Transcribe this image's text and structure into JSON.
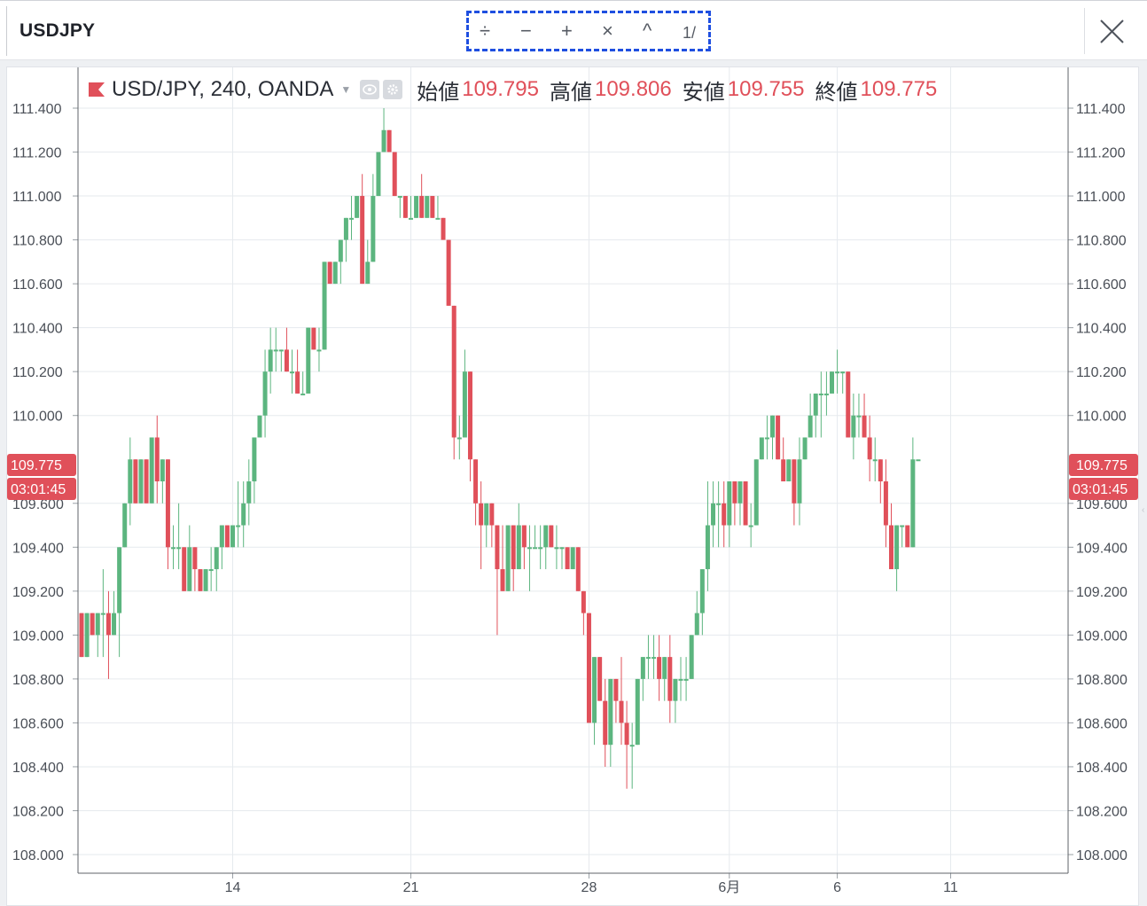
{
  "window": {
    "symbol": "USDJPY",
    "toolbar": {
      "divide": "÷",
      "minus": "−",
      "plus": "+",
      "times": "×",
      "caret": "^",
      "page": "1/"
    }
  },
  "legend": {
    "instrument": "USD/JPY, 240, OANDA",
    "open_label": "始値",
    "open_value": "109.795",
    "high_label": "高値",
    "high_value": "109.806",
    "low_label": "安値",
    "low_value": "109.755",
    "close_label": "終値",
    "close_value": "109.775"
  },
  "price_badge": {
    "price": "109.775",
    "countdown": "03:01:45"
  },
  "colors": {
    "up": "#5cb57f",
    "down": "#e0505a",
    "grid": "#e6eaee",
    "axis_text": "#4a4f57"
  },
  "chart_data": {
    "type": "candlestick",
    "title": "USD/JPY, 240, OANDA",
    "ylim": [
      108.0,
      111.4
    ],
    "y_ticks": [
      "111.400",
      "111.200",
      "111.000",
      "110.800",
      "110.600",
      "110.400",
      "110.200",
      "110.000",
      "109.600",
      "109.400",
      "109.200",
      "109.000",
      "108.800",
      "108.600",
      "108.400",
      "108.200",
      "108.000"
    ],
    "x_ticks": [
      {
        "label": "14",
        "index": 28
      },
      {
        "label": "21",
        "index": 61
      },
      {
        "label": "28",
        "index": 94
      },
      {
        "label": "6月",
        "index": 120
      },
      {
        "label": "6",
        "index": 140
      },
      {
        "label": "11",
        "index": 161
      }
    ],
    "grid": true,
    "ohlc": [
      [
        109.1,
        109.1,
        108.9,
        108.9
      ],
      [
        108.9,
        109.1,
        108.9,
        109.1
      ],
      [
        109.1,
        109.1,
        109.0,
        109.0
      ],
      [
        109.0,
        109.1,
        108.9,
        109.1
      ],
      [
        109.1,
        109.3,
        108.9,
        109.1
      ],
      [
        109.1,
        109.2,
        108.8,
        109.0
      ],
      [
        109.0,
        109.2,
        109.0,
        109.1
      ],
      [
        109.1,
        109.4,
        108.9,
        109.4
      ],
      [
        109.4,
        109.6,
        109.4,
        109.6
      ],
      [
        109.6,
        109.9,
        109.5,
        109.8
      ],
      [
        109.8,
        109.8,
        109.6,
        109.6
      ],
      [
        109.6,
        109.8,
        109.6,
        109.8
      ],
      [
        109.8,
        109.8,
        109.6,
        109.6
      ],
      [
        109.6,
        109.9,
        109.6,
        109.9
      ],
      [
        109.9,
        110.0,
        109.6,
        109.7
      ],
      [
        109.7,
        109.8,
        109.6,
        109.8
      ],
      [
        109.8,
        109.8,
        109.3,
        109.4
      ],
      [
        109.4,
        109.5,
        109.3,
        109.4
      ],
      [
        109.4,
        109.6,
        109.3,
        109.4
      ],
      [
        109.4,
        109.4,
        109.2,
        109.2
      ],
      [
        109.2,
        109.5,
        109.2,
        109.4
      ],
      [
        109.4,
        109.4,
        109.2,
        109.3
      ],
      [
        109.3,
        109.3,
        109.2,
        109.2
      ],
      [
        109.2,
        109.3,
        109.2,
        109.3
      ],
      [
        109.3,
        109.4,
        109.2,
        109.3
      ],
      [
        109.3,
        109.4,
        109.2,
        109.4
      ],
      [
        109.4,
        109.5,
        109.3,
        109.5
      ],
      [
        109.5,
        109.5,
        109.4,
        109.4
      ],
      [
        109.4,
        109.5,
        109.4,
        109.5
      ],
      [
        109.5,
        109.7,
        109.4,
        109.5
      ],
      [
        109.5,
        109.7,
        109.4,
        109.6
      ],
      [
        109.6,
        109.8,
        109.5,
        109.7
      ],
      [
        109.7,
        109.9,
        109.6,
        109.9
      ],
      [
        109.9,
        110.0,
        109.9,
        110.0
      ],
      [
        110.0,
        110.3,
        109.9,
        110.2
      ],
      [
        110.2,
        110.4,
        110.1,
        110.3
      ],
      [
        110.3,
        110.4,
        110.2,
        110.3
      ],
      [
        110.3,
        110.3,
        110.2,
        110.3
      ],
      [
        110.3,
        110.4,
        110.2,
        110.2
      ],
      [
        110.2,
        110.3,
        110.1,
        110.2
      ],
      [
        110.2,
        110.3,
        110.1,
        110.1
      ],
      [
        110.1,
        110.2,
        110.1,
        110.1
      ],
      [
        110.1,
        110.4,
        110.1,
        110.4
      ],
      [
        110.4,
        110.4,
        110.3,
        110.3
      ],
      [
        110.3,
        110.4,
        110.2,
        110.3
      ],
      [
        110.3,
        110.7,
        110.3,
        110.7
      ],
      [
        110.7,
        110.7,
        110.6,
        110.6
      ],
      [
        110.6,
        110.7,
        110.6,
        110.7
      ],
      [
        110.7,
        110.8,
        110.6,
        110.8
      ],
      [
        110.8,
        110.9,
        110.7,
        110.9
      ],
      [
        110.9,
        111.0,
        110.8,
        110.9
      ],
      [
        110.9,
        111.0,
        110.9,
        111.0
      ],
      [
        111.0,
        111.1,
        110.6,
        110.6
      ],
      [
        110.6,
        110.8,
        110.6,
        110.7
      ],
      [
        110.7,
        111.1,
        110.7,
        111.0
      ],
      [
        111.0,
        111.2,
        111.0,
        111.2
      ],
      [
        111.2,
        111.4,
        111.2,
        111.3
      ],
      [
        111.3,
        111.3,
        111.2,
        111.2
      ],
      [
        111.2,
        111.2,
        111.0,
        111.0
      ],
      [
        111.0,
        111.0,
        110.9,
        111.0
      ],
      [
        111.0,
        111.0,
        110.9,
        110.9
      ],
      [
        110.9,
        111.0,
        110.9,
        110.9
      ],
      [
        110.9,
        111.0,
        110.9,
        111.0
      ],
      [
        111.0,
        111.1,
        110.9,
        110.9
      ],
      [
        110.9,
        111.0,
        110.9,
        111.0
      ],
      [
        111.0,
        111.0,
        110.9,
        110.9
      ],
      [
        110.9,
        111.0,
        110.9,
        110.9
      ],
      [
        110.9,
        110.9,
        110.8,
        110.8
      ],
      [
        110.8,
        110.8,
        110.5,
        110.5
      ],
      [
        110.5,
        110.5,
        109.8,
        109.9
      ],
      [
        109.9,
        110.0,
        109.8,
        109.9
      ],
      [
        109.9,
        110.3,
        109.9,
        110.2
      ],
      [
        110.2,
        110.2,
        109.7,
        109.8
      ],
      [
        109.8,
        109.8,
        109.5,
        109.6
      ],
      [
        109.6,
        109.7,
        109.3,
        109.5
      ],
      [
        109.5,
        109.6,
        109.4,
        109.6
      ],
      [
        109.6,
        109.6,
        109.4,
        109.5
      ],
      [
        109.5,
        109.5,
        109.0,
        109.3
      ],
      [
        109.3,
        109.5,
        109.2,
        109.2
      ],
      [
        109.2,
        109.5,
        109.2,
        109.5
      ],
      [
        109.5,
        109.5,
        109.2,
        109.3
      ],
      [
        109.3,
        109.6,
        109.3,
        109.5
      ],
      [
        109.5,
        109.5,
        109.3,
        109.4
      ],
      [
        109.4,
        109.5,
        109.2,
        109.4
      ],
      [
        109.4,
        109.5,
        109.4,
        109.4
      ],
      [
        109.4,
        109.5,
        109.3,
        109.4
      ],
      [
        109.4,
        109.5,
        109.3,
        109.5
      ],
      [
        109.5,
        109.5,
        109.4,
        109.4
      ],
      [
        109.4,
        109.5,
        109.3,
        109.4
      ],
      [
        109.4,
        109.4,
        109.3,
        109.4
      ],
      [
        109.4,
        109.4,
        109.3,
        109.3
      ],
      [
        109.3,
        109.4,
        109.3,
        109.4
      ],
      [
        109.4,
        109.4,
        109.2,
        109.2
      ],
      [
        109.2,
        109.2,
        109.0,
        109.1
      ],
      [
        109.1,
        109.1,
        108.6,
        108.6
      ],
      [
        108.6,
        108.9,
        108.5,
        108.9
      ],
      [
        108.9,
        108.9,
        108.7,
        108.7
      ],
      [
        108.7,
        108.8,
        108.4,
        108.5
      ],
      [
        108.5,
        108.8,
        108.4,
        108.8
      ],
      [
        108.8,
        108.8,
        108.6,
        108.7
      ],
      [
        108.7,
        108.9,
        108.5,
        108.6
      ],
      [
        108.6,
        108.7,
        108.3,
        108.5
      ],
      [
        108.5,
        108.6,
        108.3,
        108.5
      ],
      [
        108.5,
        108.8,
        108.5,
        108.8
      ],
      [
        108.8,
        108.9,
        108.7,
        108.9
      ],
      [
        108.9,
        109.0,
        108.8,
        108.9
      ],
      [
        108.9,
        109.0,
        108.8,
        108.9
      ],
      [
        108.9,
        109.0,
        108.7,
        108.8
      ],
      [
        108.8,
        108.9,
        108.7,
        108.9
      ],
      [
        108.9,
        109.0,
        108.6,
        108.7
      ],
      [
        108.7,
        108.8,
        108.6,
        108.8
      ],
      [
        108.8,
        108.9,
        108.7,
        108.8
      ],
      [
        108.8,
        108.9,
        108.7,
        108.8
      ],
      [
        108.8,
        109.0,
        108.8,
        109.0
      ],
      [
        109.0,
        109.2,
        109.0,
        109.1
      ],
      [
        109.1,
        109.3,
        109.0,
        109.3
      ],
      [
        109.3,
        109.7,
        109.2,
        109.5
      ],
      [
        109.5,
        109.7,
        109.4,
        109.6
      ],
      [
        109.6,
        109.7,
        109.4,
        109.6
      ],
      [
        109.6,
        109.7,
        109.4,
        109.5
      ],
      [
        109.5,
        109.7,
        109.4,
        109.7
      ],
      [
        109.7,
        109.7,
        109.5,
        109.6
      ],
      [
        109.6,
        109.7,
        109.5,
        109.7
      ],
      [
        109.7,
        109.7,
        109.5,
        109.5
      ],
      [
        109.5,
        109.6,
        109.4,
        109.5
      ],
      [
        109.5,
        109.8,
        109.5,
        109.8
      ],
      [
        109.8,
        109.9,
        109.8,
        109.9
      ],
      [
        109.9,
        110.0,
        109.8,
        109.9
      ],
      [
        109.9,
        110.0,
        109.8,
        110.0
      ],
      [
        110.0,
        110.0,
        109.8,
        109.8
      ],
      [
        109.8,
        109.9,
        109.7,
        109.7
      ],
      [
        109.7,
        109.8,
        109.7,
        109.8
      ],
      [
        109.8,
        109.8,
        109.5,
        109.6
      ],
      [
        109.6,
        109.9,
        109.5,
        109.8
      ],
      [
        109.8,
        109.9,
        109.8,
        109.9
      ],
      [
        109.9,
        110.1,
        109.9,
        110.0
      ],
      [
        110.0,
        110.1,
        109.9,
        110.1
      ],
      [
        110.1,
        110.2,
        109.9,
        110.1
      ],
      [
        110.1,
        110.2,
        110.0,
        110.1
      ],
      [
        110.1,
        110.2,
        110.1,
        110.2
      ],
      [
        110.2,
        110.3,
        110.1,
        110.2
      ],
      [
        110.2,
        110.2,
        110.1,
        110.2
      ],
      [
        110.2,
        110.2,
        109.9,
        109.9
      ],
      [
        109.9,
        110.1,
        109.8,
        110.0
      ],
      [
        110.0,
        110.1,
        109.9,
        110.0
      ],
      [
        110.0,
        110.1,
        109.9,
        109.9
      ],
      [
        109.9,
        110.0,
        109.7,
        109.8
      ],
      [
        109.8,
        109.9,
        109.7,
        109.8
      ],
      [
        109.8,
        109.8,
        109.6,
        109.7
      ],
      [
        109.7,
        109.8,
        109.4,
        109.5
      ],
      [
        109.5,
        109.6,
        109.3,
        109.3
      ],
      [
        109.3,
        109.5,
        109.2,
        109.5
      ],
      [
        109.5,
        109.5,
        109.4,
        109.5
      ],
      [
        109.5,
        109.5,
        109.4,
        109.4
      ],
      [
        109.4,
        109.9,
        109.4,
        109.8
      ],
      [
        109.8,
        109.8,
        109.8,
        109.8
      ]
    ]
  }
}
